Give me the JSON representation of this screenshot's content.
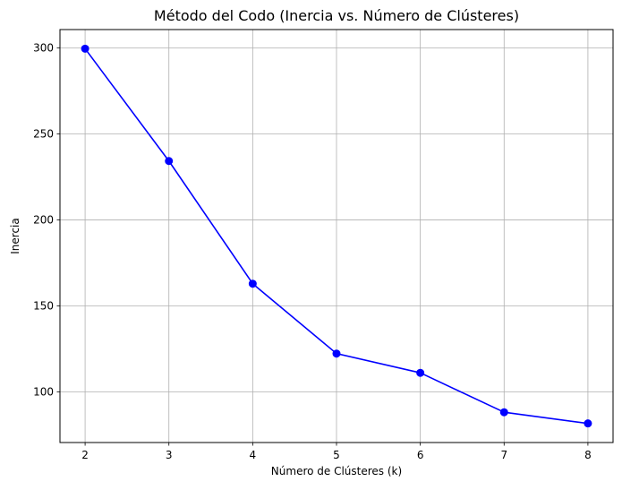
{
  "chart_data": {
    "type": "line",
    "title": "Método del Codo (Inercia vs. Número de Clústeres)",
    "xlabel": "Número de Clústeres (k)",
    "ylabel": "Inercia",
    "x": [
      2,
      3,
      4,
      5,
      6,
      7,
      8
    ],
    "series": [
      {
        "values": [
          299.5,
          234.2,
          162.9,
          122.3,
          111.1,
          88.2,
          81.7
        ],
        "color": "#0000ff",
        "marker": "circle"
      }
    ],
    "xticks": [
      2,
      3,
      4,
      5,
      6,
      7,
      8
    ],
    "xtick_labels": [
      "2",
      "3",
      "4",
      "5",
      "6",
      "7",
      "8"
    ],
    "yticks": [
      100,
      150,
      200,
      250,
      300
    ],
    "ytick_labels": [
      "100",
      "150",
      "200",
      "250",
      "300"
    ],
    "xlim": [
      1.7,
      8.3
    ],
    "ylim": [
      70.6,
      310.6
    ],
    "grid": true,
    "grid_color": "#b0b0b0"
  }
}
